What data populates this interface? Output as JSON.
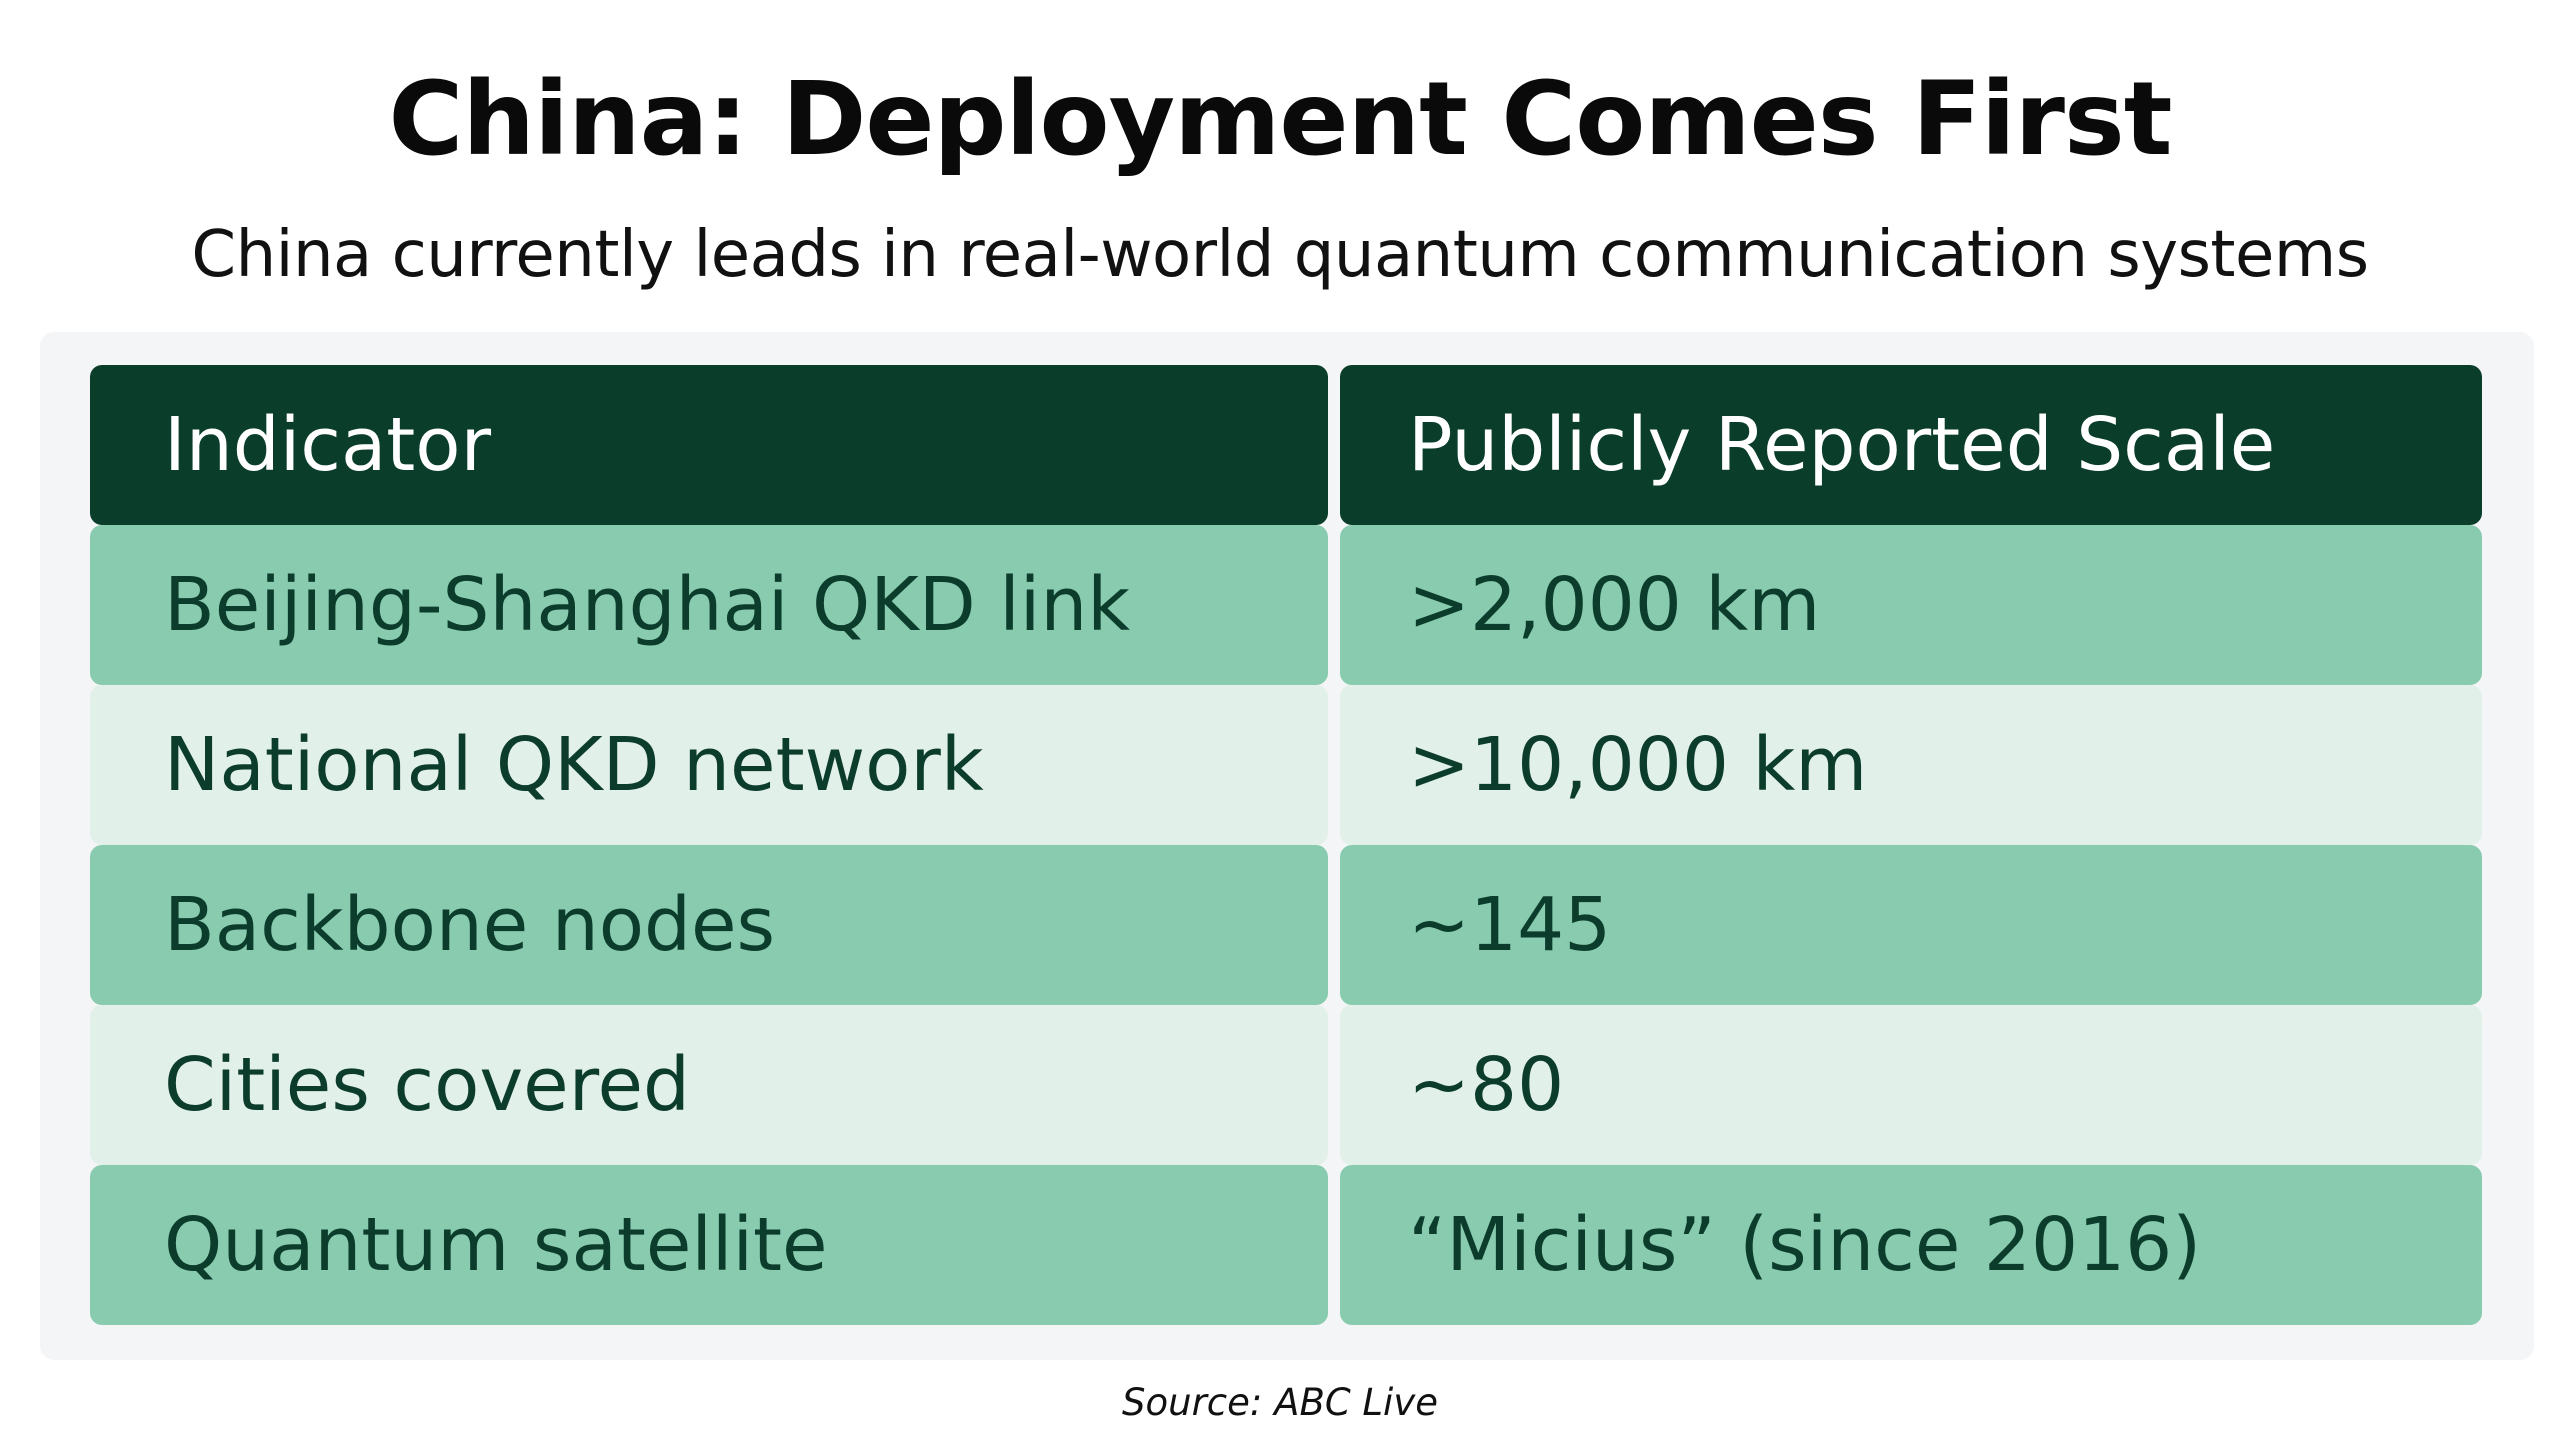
{
  "title": "China: Deployment Comes First",
  "subtitle": "China currently leads in real-world quantum communication systems",
  "table": {
    "headers": [
      "Indicator",
      "Publicly Reported Scale"
    ],
    "rows": [
      [
        "Beijing-Shanghai QKD link",
        ">2,000 km"
      ],
      [
        "National QKD network",
        ">10,000 km"
      ],
      [
        "Backbone nodes",
        "~145"
      ],
      [
        "Cities covered",
        "~80"
      ],
      [
        "Quantum satellite",
        "“Micius” (since 2016)"
      ]
    ]
  },
  "source": "Source: ABC Live",
  "colors": {
    "header_bg": "#0a3e2b",
    "row_dark_bg": "#88cbaf",
    "row_light_bg": "#e1f0e8",
    "text_dark_green": "#0c3d2c",
    "panel_bg": "#f4f5f6"
  }
}
